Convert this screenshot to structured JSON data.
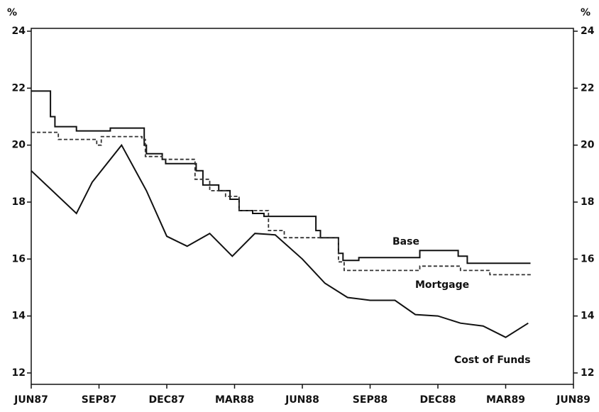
{
  "chart_data": {
    "type": "line",
    "ylabel": "%",
    "y2label": "%",
    "xlim": [
      0,
      24
    ],
    "xticks": [
      {
        "value": 0,
        "label": "JUN87"
      },
      {
        "value": 3,
        "label": "SEP87"
      },
      {
        "value": 6,
        "label": "DEC87"
      },
      {
        "value": 9,
        "label": "MAR88"
      },
      {
        "value": 12,
        "label": "JUN88"
      },
      {
        "value": 15,
        "label": "SEP88"
      },
      {
        "value": 18,
        "label": "DEC88"
      },
      {
        "value": 21,
        "label": "MAR89"
      },
      {
        "value": 24,
        "label": "JUN89"
      }
    ],
    "ylim": [
      11.6,
      24.1
    ],
    "yticks": [
      12,
      14,
      16,
      18,
      20,
      22,
      24
    ],
    "y2lim": [
      11.6,
      24.1
    ],
    "y2ticks": [
      12,
      14,
      16,
      18,
      20,
      22,
      24
    ],
    "series": [
      {
        "name": "Base",
        "color": "#111111",
        "style": "solid",
        "x": [
          0,
          0.85,
          0.85,
          1.05,
          1.05,
          2.0,
          2.0,
          3.5,
          3.5,
          5.0,
          5.0,
          5.1,
          5.1,
          5.8,
          5.8,
          5.95,
          5.95,
          7.3,
          7.3,
          7.6,
          7.6,
          8.3,
          8.3,
          8.8,
          8.8,
          9.2,
          9.2,
          9.8,
          9.8,
          10.3,
          10.3,
          12.6,
          12.6,
          12.8,
          12.8,
          13.6,
          13.6,
          13.8,
          13.8,
          14.5,
          14.5,
          17.2,
          17.2,
          18.9,
          18.9,
          19.3,
          19.3,
          22.1
        ],
        "values": [
          21.9,
          21.9,
          21.0,
          21.0,
          20.65,
          20.65,
          20.5,
          20.5,
          20.6,
          20.6,
          20.0,
          20.0,
          19.7,
          19.7,
          19.5,
          19.5,
          19.35,
          19.35,
          19.1,
          19.1,
          18.6,
          18.6,
          18.4,
          18.4,
          18.1,
          18.1,
          17.7,
          17.7,
          17.6,
          17.6,
          17.5,
          17.5,
          17.0,
          17.0,
          16.75,
          16.75,
          16.2,
          16.2,
          15.95,
          15.95,
          16.05,
          16.05,
          16.3,
          16.3,
          16.1,
          16.1,
          15.85,
          15.85
        ]
      },
      {
        "name": "Mortgage",
        "color": "#333333",
        "style": "dashed",
        "x": [
          0,
          1.2,
          1.2,
          2.9,
          2.9,
          3.1,
          3.1,
          4.9,
          4.9,
          5.05,
          5.05,
          5.8,
          5.8,
          7.25,
          7.25,
          7.9,
          7.9,
          8.6,
          8.6,
          9.2,
          9.2,
          10.5,
          10.5,
          11.2,
          11.2,
          13.6,
          13.6,
          13.85,
          13.85,
          17.2,
          17.2,
          19.0,
          19.0,
          20.3,
          20.3,
          22.2
        ],
        "values": [
          20.45,
          20.45,
          20.2,
          20.2,
          20.0,
          20.0,
          20.3,
          20.3,
          20.2,
          20.2,
          19.6,
          19.6,
          19.5,
          19.5,
          18.8,
          18.8,
          18.4,
          18.4,
          18.2,
          18.2,
          17.7,
          17.7,
          17.0,
          17.0,
          16.75,
          16.75,
          15.9,
          15.9,
          15.6,
          15.6,
          15.75,
          15.75,
          15.6,
          15.6,
          15.45,
          15.45
        ]
      },
      {
        "name": "Cost of Funds",
        "color": "#111111",
        "style": "solid",
        "x": [
          0,
          2.0,
          2.7,
          4.0,
          5.1,
          6.0,
          6.9,
          7.9,
          8.9,
          9.9,
          10.8,
          12.0,
          13.0,
          14.0,
          15.0,
          16.1,
          17.0,
          18.0,
          19.0,
          20.0,
          21.0,
          22.0
        ],
        "values": [
          19.1,
          17.6,
          18.7,
          20.0,
          18.4,
          16.8,
          16.45,
          16.9,
          16.1,
          16.9,
          16.85,
          16.0,
          15.15,
          14.65,
          14.55,
          14.55,
          14.05,
          14.0,
          13.75,
          13.65,
          13.25,
          13.75
        ]
      }
    ]
  }
}
